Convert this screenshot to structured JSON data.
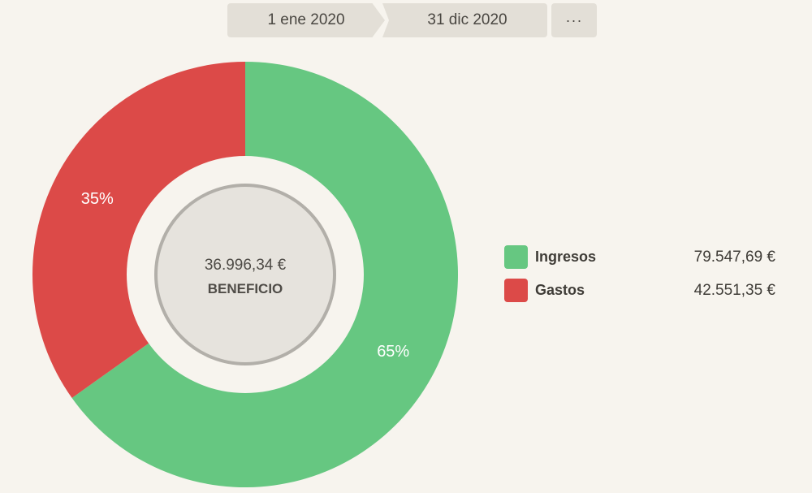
{
  "date_range": {
    "start": "1 ene 2020",
    "end": "31 dic 2020",
    "more_label": "···"
  },
  "center": {
    "value": "36.996,34 €",
    "label": "BENEFICIO"
  },
  "colors": {
    "ingresos": "#66c781",
    "gastos": "#dc4a48",
    "center_fill": "#e6e3dd",
    "center_ring": "#b2afa9",
    "background": "#f7f4ee"
  },
  "legend": [
    {
      "name": "Ingresos",
      "amount": "79.547,69 €"
    },
    {
      "name": "Gastos",
      "amount": "42.551,35 €"
    }
  ],
  "chart_data": {
    "type": "pie",
    "categories": [
      "Ingresos",
      "Gastos"
    ],
    "values": [
      79547.69,
      42551.35
    ],
    "percent_labels": [
      "65%",
      "35%"
    ]
  }
}
